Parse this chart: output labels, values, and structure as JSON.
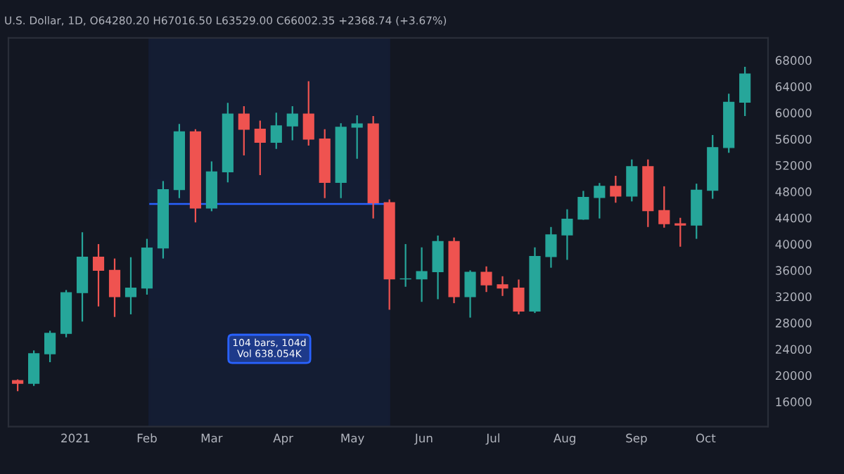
{
  "chart_data": {
    "type": "candlestick",
    "title": "U.S. Dollar, 1D, O64280.20 H67016.50 L63529.00 C66002.35 +2368.74 (+3.67%)",
    "x": [
      "2020-12-07",
      "2020-12-14",
      "2020-12-21",
      "2020-12-28",
      "2021-01-04",
      "2021-01-11",
      "2021-01-18",
      "2021-01-25",
      "2021-02-01",
      "2021-02-08",
      "2021-02-15",
      "2021-02-22",
      "2021-03-01",
      "2021-03-08",
      "2021-03-15",
      "2021-03-22",
      "2021-03-29",
      "2021-04-05",
      "2021-04-12",
      "2021-04-19",
      "2021-04-26",
      "2021-05-03",
      "2021-05-10",
      "2021-05-17",
      "2021-05-24",
      "2021-05-31",
      "2021-06-07",
      "2021-06-14",
      "2021-06-21",
      "2021-06-28",
      "2021-07-05",
      "2021-07-12",
      "2021-07-19",
      "2021-07-26",
      "2021-08-02",
      "2021-08-09",
      "2021-08-16",
      "2021-08-23",
      "2021-08-30",
      "2021-09-06",
      "2021-09-13",
      "2021-09-20",
      "2021-09-27",
      "2021-10-04",
      "2021-10-11",
      "2021-10-18"
    ],
    "ohlc": [
      [
        19200,
        19400,
        17600,
        18800
      ],
      [
        18800,
        23800,
        18400,
        23300
      ],
      [
        23300,
        26800,
        22000,
        26400
      ],
      [
        26400,
        33000,
        25800,
        32600
      ],
      [
        32600,
        41800,
        28200,
        38000
      ],
      [
        38000,
        40000,
        30500,
        36000
      ],
      [
        36000,
        37800,
        28900,
        32000
      ],
      [
        32000,
        38000,
        29300,
        33300
      ],
      [
        33300,
        40800,
        32300,
        39400
      ],
      [
        39400,
        49600,
        37800,
        48300
      ],
      [
        48300,
        58300,
        47000,
        57100
      ],
      [
        57100,
        57500,
        43300,
        45500
      ],
      [
        45500,
        52600,
        45000,
        51000
      ],
      [
        51000,
        61500,
        49400,
        59800
      ],
      [
        59800,
        61000,
        53500,
        57500
      ],
      [
        57500,
        58800,
        50500,
        55500
      ],
      [
        55500,
        60000,
        54500,
        58000
      ],
      [
        58000,
        61000,
        55800,
        59800
      ],
      [
        59800,
        64800,
        55000,
        56000
      ],
      [
        56000,
        57500,
        47000,
        49400
      ],
      [
        49400,
        58400,
        47000,
        57800
      ],
      [
        57800,
        59600,
        53000,
        58300
      ],
      [
        58300,
        59500,
        43900,
        46300
      ],
      [
        46300,
        46800,
        30000,
        34700
      ],
      [
        34700,
        40000,
        33500,
        34700
      ],
      [
        34700,
        39500,
        31200,
        35800
      ],
      [
        35800,
        41300,
        31600,
        40400
      ],
      [
        40400,
        41000,
        31000,
        32000
      ],
      [
        32000,
        36000,
        28800,
        35700
      ],
      [
        35700,
        36600,
        32700,
        33800
      ],
      [
        33800,
        35100,
        32100,
        33300
      ],
      [
        33300,
        34600,
        29300,
        29800
      ],
      [
        29800,
        39500,
        29500,
        38100
      ],
      [
        38100,
        42600,
        36400,
        41400
      ],
      [
        41400,
        45300,
        37600,
        43800
      ],
      [
        43800,
        48100,
        43700,
        47100
      ],
      [
        47100,
        49300,
        43900,
        48800
      ],
      [
        48800,
        50400,
        46300,
        47300
      ],
      [
        47300,
        52900,
        46500,
        51800
      ],
      [
        51800,
        52900,
        42600,
        45100
      ],
      [
        45100,
        48800,
        42500,
        43100
      ],
      [
        43100,
        44000,
        39600,
        42900
      ],
      [
        42900,
        49200,
        40800,
        48200
      ],
      [
        48200,
        56600,
        46900,
        54700
      ],
      [
        54700,
        62900,
        53900,
        61600
      ],
      [
        61600,
        67000,
        59500,
        65900
      ]
    ],
    "xlim": [
      "2020-12-03",
      "2021-10-28"
    ],
    "xticks": [
      {
        "value": "2021-01-01",
        "label": "2021"
      },
      {
        "value": "2021-02-01",
        "label": "Feb"
      },
      {
        "value": "2021-03-01",
        "label": "Mar"
      },
      {
        "value": "2021-04-01",
        "label": "Apr"
      },
      {
        "value": "2021-05-01",
        "label": "May"
      },
      {
        "value": "2021-06-01",
        "label": "Jun"
      },
      {
        "value": "2021-07-01",
        "label": "Jul"
      },
      {
        "value": "2021-08-01",
        "label": "Aug"
      },
      {
        "value": "2021-09-01",
        "label": "Sep"
      },
      {
        "value": "2021-10-01",
        "label": "Oct"
      }
    ],
    "ylim": [
      12200,
      71400
    ],
    "yticks": [
      16000,
      20000,
      24000,
      28000,
      32000,
      36000,
      40000,
      44000,
      48000,
      52000,
      56000,
      60000,
      64000,
      68000
    ],
    "bands": [
      {
        "axis": "x",
        "from": "2021-02-02",
        "to": "2021-05-17",
        "color": "#2962ff"
      }
    ],
    "ref_lines": [
      {
        "axis": "y",
        "value": 46100,
        "color": "#2962ff"
      }
    ],
    "annotations": [
      "104 bars, 104d\nVol 638.054K"
    ],
    "grid": false
  }
}
